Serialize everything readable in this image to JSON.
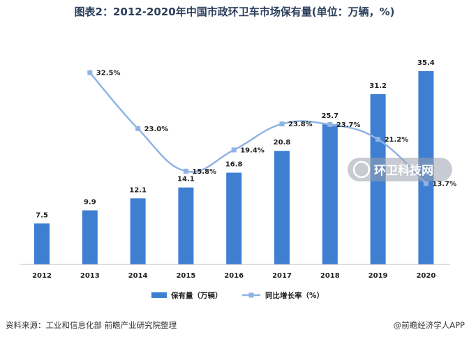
{
  "chart_data": {
    "type": "bar",
    "title": "图表2：2012-2020年中国市政环卫车市场保有量(单位：万辆，%)",
    "categories": [
      "2012",
      "2013",
      "2014",
      "2015",
      "2016",
      "2017",
      "2018",
      "2019",
      "2020"
    ],
    "series": [
      {
        "name": "保有量（万辆）",
        "type": "bar",
        "axis": "left",
        "color": "#3f7fd2",
        "values": [
          7.5,
          9.9,
          12.1,
          14.1,
          16.8,
          20.8,
          25.7,
          31.2,
          35.4
        ],
        "labels": [
          "7.5",
          "9.9",
          "12.1",
          "14.1",
          "16.8",
          "20.8",
          "25.7",
          "31.2",
          "35.4"
        ]
      },
      {
        "name": "同比增长率（%）",
        "type": "line",
        "axis": "right",
        "color": "#8fb4e3",
        "smooth": true,
        "values": [
          null,
          32.5,
          23.0,
          15.8,
          19.4,
          23.8,
          23.7,
          21.2,
          13.7
        ],
        "labels": [
          null,
          "32.5%",
          "23.0%",
          "15.8%",
          "19.4%",
          "23.8%",
          "23.7%",
          "21.2%",
          "13.7%"
        ]
      }
    ],
    "ylim": [
      0,
      40
    ],
    "y2lim": [
      0,
      37
    ],
    "grid": false,
    "legend": "bottom"
  },
  "source_text": "资料来源：工业和信息化部 前瞻产业研究院整理",
  "brand_text": "@前瞻经济学人APP",
  "watermark_text": "环卫科技网"
}
